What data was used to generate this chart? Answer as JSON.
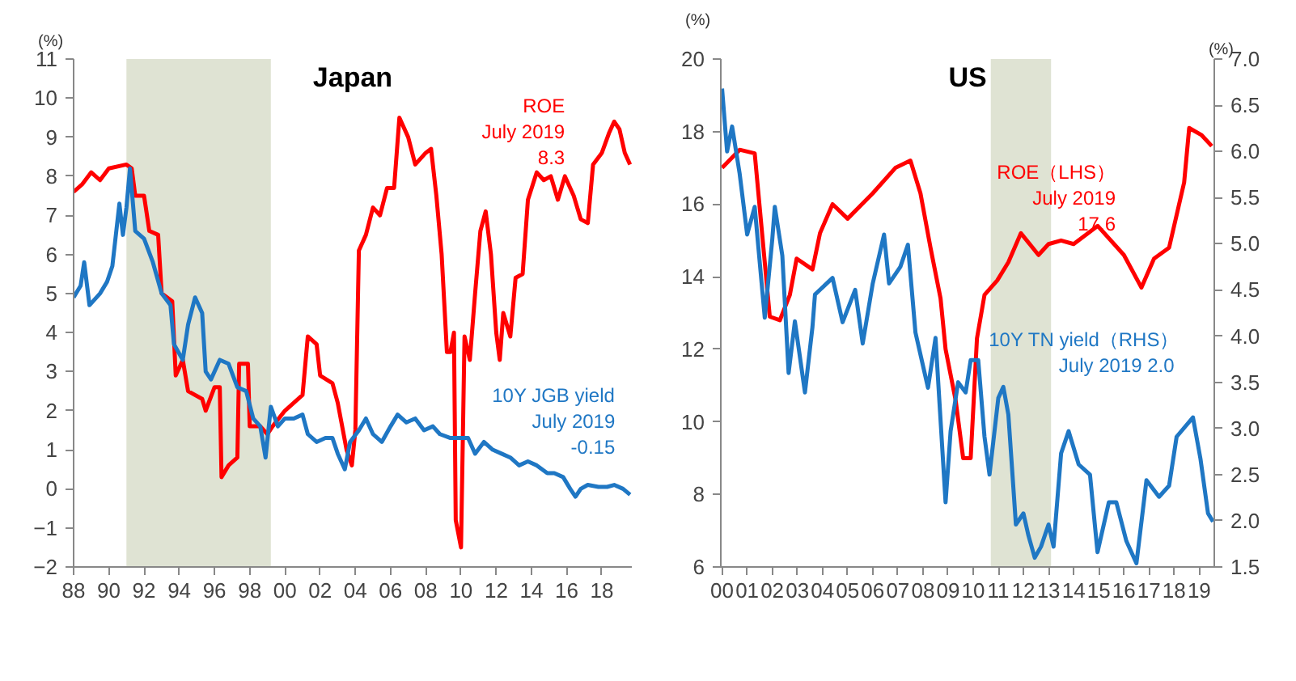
{
  "chart_data": [
    {
      "type": "line",
      "title": "Japan",
      "ylabel": "(%)",
      "xlim": [
        1988,
        2019.7
      ],
      "xticks": [
        {
          "value": 1988,
          "label": "88"
        },
        {
          "value": 1990,
          "label": "90"
        },
        {
          "value": 1992,
          "label": "92"
        },
        {
          "value": 1994,
          "label": "94"
        },
        {
          "value": 1996,
          "label": "96"
        },
        {
          "value": 1998,
          "label": "98"
        },
        {
          "value": 2000,
          "label": "00"
        },
        {
          "value": 2002,
          "label": "02"
        },
        {
          "value": 2004,
          "label": "04"
        },
        {
          "value": 2006,
          "label": "06"
        },
        {
          "value": 2008,
          "label": "08"
        },
        {
          "value": 2010,
          "label": "10"
        },
        {
          "value": 2012,
          "label": "12"
        },
        {
          "value": 2014,
          "label": "14"
        },
        {
          "value": 2016,
          "label": "16"
        },
        {
          "value": 2018,
          "label": "18"
        }
      ],
      "ylim": [
        -2,
        11
      ],
      "yticks": [
        -2,
        -1,
        0,
        1,
        2,
        3,
        4,
        5,
        6,
        7,
        8,
        9,
        10,
        11
      ],
      "grid": false,
      "bands": [
        {
          "axis": "x",
          "from": 1991.0,
          "to": 1999.2,
          "color": "#dfe3d3"
        }
      ],
      "annotations": [
        "ROE\nJuly 2019\n8.3",
        "10Y JGB yield\nJuly 2019\n-0.15"
      ],
      "series": [
        {
          "color": "#ff0000",
          "x": [
            1988.0,
            1988.5,
            1989.0,
            1989.5,
            1990.0,
            1991.0,
            1991.3,
            1991.5,
            1992.0,
            1992.3,
            1992.8,
            1993.0,
            1993.6,
            1993.8,
            1994.2,
            1994.5,
            1995.3,
            1995.5,
            1996.0,
            1996.3,
            1996.4,
            1996.8,
            1997.3,
            1997.4,
            1997.9,
            1998.0,
            1998.6,
            1999.0,
            1999.3,
            2000.0,
            2000.5,
            2001.0,
            2001.3,
            2001.8,
            2002.0,
            2002.7,
            2003.0,
            2003.5,
            2003.8,
            2004.0,
            2004.2,
            2004.6,
            2005.0,
            2005.4,
            2005.8,
            2006.2,
            2006.5,
            2007.0,
            2007.4,
            2008.0,
            2008.3,
            2008.6,
            2008.9,
            2009.2,
            2009.4,
            2009.6,
            2009.7,
            2010.0,
            2010.2,
            2010.5,
            2010.8,
            2011.1,
            2011.4,
            2011.7,
            2012.0,
            2012.2,
            2012.4,
            2012.8,
            2013.1,
            2013.5,
            2013.8,
            2014.3,
            2014.7,
            2015.1,
            2015.5,
            2015.9,
            2016.4,
            2016.8,
            2017.2,
            2017.5,
            2018.0,
            2018.4,
            2018.7,
            2019.0,
            2019.3,
            2019.6
          ],
          "values": [
            7.6,
            7.8,
            8.1,
            7.9,
            8.2,
            8.3,
            8.2,
            7.5,
            7.5,
            6.6,
            6.5,
            5.0,
            4.8,
            2.9,
            3.3,
            2.5,
            2.3,
            2.0,
            2.6,
            2.6,
            0.3,
            0.6,
            0.8,
            3.2,
            3.2,
            1.6,
            1.6,
            1.4,
            1.6,
            2.0,
            2.2,
            2.4,
            3.9,
            3.7,
            2.9,
            2.7,
            2.2,
            1.0,
            0.6,
            1.5,
            6.1,
            6.5,
            7.2,
            7.0,
            7.7,
            7.7,
            9.5,
            9.0,
            8.3,
            8.6,
            8.7,
            7.5,
            6.0,
            3.5,
            3.5,
            4.0,
            -0.8,
            -1.5,
            3.9,
            3.3,
            5.0,
            6.6,
            7.1,
            6.0,
            4.0,
            3.3,
            4.5,
            3.9,
            5.4,
            5.5,
            7.4,
            8.1,
            7.9,
            8.0,
            7.4,
            8.0,
            7.5,
            6.9,
            6.8,
            8.3,
            8.6,
            9.1,
            9.4,
            9.2,
            8.6,
            8.3
          ]
        },
        {
          "color": "#1f77c4",
          "x": [
            1988.0,
            1988.4,
            1988.6,
            1988.9,
            1989.5,
            1989.9,
            1990.2,
            1990.6,
            1990.8,
            1991.0,
            1991.2,
            1991.5,
            1992.0,
            1992.5,
            1993.0,
            1993.5,
            1993.7,
            1994.2,
            1994.5,
            1994.9,
            1995.3,
            1995.5,
            1995.8,
            1996.3,
            1996.8,
            1997.3,
            1997.8,
            1998.2,
            1998.6,
            1998.9,
            1999.2,
            1999.6,
            2000.0,
            2000.5,
            2001.0,
            2001.3,
            2001.8,
            2002.3,
            2002.7,
            2003.0,
            2003.4,
            2003.7,
            2004.2,
            2004.6,
            2005.0,
            2005.5,
            2006.0,
            2006.4,
            2006.9,
            2007.4,
            2007.9,
            2008.4,
            2008.8,
            2009.4,
            2010.0,
            2010.4,
            2010.8,
            2011.3,
            2011.8,
            2012.3,
            2012.8,
            2013.3,
            2013.8,
            2014.3,
            2014.9,
            2015.3,
            2015.8,
            2016.2,
            2016.5,
            2016.8,
            2017.2,
            2017.8,
            2018.3,
            2018.7,
            2019.2,
            2019.6
          ],
          "values": [
            4.9,
            5.2,
            5.8,
            4.7,
            5.0,
            5.3,
            5.7,
            7.3,
            6.5,
            7.2,
            8.2,
            6.6,
            6.4,
            5.8,
            5.0,
            4.7,
            3.7,
            3.3,
            4.2,
            4.9,
            4.5,
            3.0,
            2.8,
            3.3,
            3.2,
            2.6,
            2.5,
            1.8,
            1.6,
            0.8,
            2.1,
            1.6,
            1.8,
            1.8,
            1.9,
            1.4,
            1.2,
            1.3,
            1.3,
            0.9,
            0.5,
            1.2,
            1.5,
            1.8,
            1.4,
            1.2,
            1.6,
            1.9,
            1.7,
            1.8,
            1.5,
            1.6,
            1.4,
            1.3,
            1.3,
            1.3,
            0.9,
            1.2,
            1.0,
            0.9,
            0.8,
            0.6,
            0.7,
            0.6,
            0.4,
            0.4,
            0.3,
            0.0,
            -0.2,
            0.0,
            0.1,
            0.05,
            0.05,
            0.1,
            0.0,
            -0.15
          ]
        }
      ]
    },
    {
      "type": "line",
      "title": "US",
      "ylabel": "(%)",
      "y2label": "(%)",
      "xlim": [
        1999.95,
        2019.6
      ],
      "xticks": [
        {
          "value": 2000,
          "label": "00"
        },
        {
          "value": 2001,
          "label": "01"
        },
        {
          "value": 2002,
          "label": "02"
        },
        {
          "value": 2003,
          "label": "03"
        },
        {
          "value": 2004,
          "label": "04"
        },
        {
          "value": 2005,
          "label": "05"
        },
        {
          "value": 2006,
          "label": "06"
        },
        {
          "value": 2007,
          "label": "07"
        },
        {
          "value": 2008,
          "label": "08"
        },
        {
          "value": 2009,
          "label": "09"
        },
        {
          "value": 2010,
          "label": "10"
        },
        {
          "value": 2011,
          "label": "11"
        },
        {
          "value": 2012,
          "label": "12"
        },
        {
          "value": 2013,
          "label": "13"
        },
        {
          "value": 2014,
          "label": "14"
        },
        {
          "value": 2015,
          "label": "15"
        },
        {
          "value": 2016,
          "label": "16"
        },
        {
          "value": 2017,
          "label": "17"
        },
        {
          "value": 2018,
          "label": "18"
        },
        {
          "value": 2019,
          "label": "19"
        }
      ],
      "ylim": [
        6,
        20
      ],
      "yticks": [
        6,
        8,
        10,
        12,
        14,
        16,
        18,
        20
      ],
      "y2lim": [
        1.5,
        7.0
      ],
      "y2ticks": [
        {
          "value": 1.5,
          "label": "1.5"
        },
        {
          "value": 2.0,
          "label": "2.0"
        },
        {
          "value": 2.5,
          "label": "2.5"
        },
        {
          "value": 3.0,
          "label": "3.0"
        },
        {
          "value": 3.5,
          "label": "3.5"
        },
        {
          "value": 4.0,
          "label": "4.0"
        },
        {
          "value": 4.5,
          "label": "4.5"
        },
        {
          "value": 5.0,
          "label": "5.0"
        },
        {
          "value": 5.5,
          "label": "5.5"
        },
        {
          "value": 6.0,
          "label": "6.0"
        },
        {
          "value": 6.5,
          "label": "6.5"
        },
        {
          "value": 7.0,
          "label": "7.0"
        }
      ],
      "grid": false,
      "bands": [
        {
          "axis": "x",
          "from": 2010.7,
          "to": 2013.1,
          "color": "#dfe3d3"
        }
      ],
      "annotations": [
        "ROE（LHS）\nJuly 2019\n17.6",
        "10Y TN yield（RHS）\nJuly 2019  2.0"
      ],
      "series": [
        {
          "color": "#ff0000",
          "x": [
            2000.0,
            2000.7,
            2001.3,
            2001.9,
            2002.3,
            2002.7,
            2002.97,
            2003.6,
            2003.9,
            2004.4,
            2005.0,
            2006.0,
            2006.9,
            2007.5,
            2007.9,
            2008.3,
            2008.7,
            2008.9,
            2009.3,
            2009.6,
            2009.9,
            2010.15,
            2010.45,
            2010.96,
            2011.4,
            2011.9,
            2012.6,
            2013.0,
            2013.5,
            2014.0,
            2014.96,
            2016.0,
            2016.7,
            2017.2,
            2017.8,
            2018.4,
            2018.6,
            2019.1,
            2019.5
          ],
          "values": [
            17.0,
            17.5,
            17.4,
            12.9,
            12.8,
            13.5,
            14.5,
            14.2,
            15.2,
            16.0,
            15.6,
            16.3,
            17.0,
            17.2,
            16.3,
            14.8,
            13.4,
            12.0,
            10.6,
            9.0,
            9.0,
            12.3,
            13.5,
            13.9,
            14.4,
            15.2,
            14.6,
            14.9,
            15.0,
            14.9,
            15.4,
            14.6,
            13.7,
            14.5,
            14.8,
            16.6,
            18.1,
            17.9,
            17.6
          ]
        },
        {
          "color": "#1f77c4",
          "axis": "y2",
          "x": [
            2000.0,
            2000.2,
            2000.4,
            2000.7,
            2001.0,
            2001.3,
            2001.7,
            2002.0,
            2002.1,
            2002.4,
            2002.65,
            2002.9,
            2003.3,
            2003.6,
            2003.7,
            2004.4,
            2004.8,
            2005.3,
            2005.6,
            2006.0,
            2006.45,
            2006.65,
            2007.1,
            2007.4,
            2007.7,
            2008.0,
            2008.2,
            2008.5,
            2008.9,
            2009.1,
            2009.4,
            2009.7,
            2009.9,
            2010.2,
            2010.45,
            2010.65,
            2011.0,
            2011.2,
            2011.4,
            2011.7,
            2012.0,
            2012.2,
            2012.45,
            2012.7,
            2013.0,
            2013.2,
            2013.5,
            2013.8,
            2014.2,
            2014.65,
            2014.95,
            2015.4,
            2015.7,
            2016.1,
            2016.5,
            2016.9,
            2017.4,
            2017.8,
            2018.1,
            2018.75,
            2019.05,
            2019.35,
            2019.55
          ],
          "values": [
            6.68,
            6.0,
            6.27,
            5.76,
            5.1,
            5.4,
            4.2,
            5.05,
            5.4,
            4.87,
            3.6,
            4.16,
            3.39,
            4.1,
            4.45,
            4.63,
            4.15,
            4.5,
            3.92,
            4.57,
            5.1,
            4.57,
            4.75,
            4.99,
            4.04,
            3.68,
            3.44,
            3.98,
            2.2,
            2.97,
            3.5,
            3.39,
            3.74,
            3.74,
            2.91,
            2.5,
            3.33,
            3.45,
            3.15,
            1.96,
            2.08,
            1.84,
            1.6,
            1.72,
            1.96,
            1.72,
            2.73,
            2.97,
            2.61,
            2.5,
            1.66,
            2.2,
            2.2,
            1.78,
            1.54,
            2.44,
            2.26,
            2.38,
            2.91,
            3.12,
            2.67,
            2.08,
            1.99
          ]
        }
      ]
    }
  ]
}
